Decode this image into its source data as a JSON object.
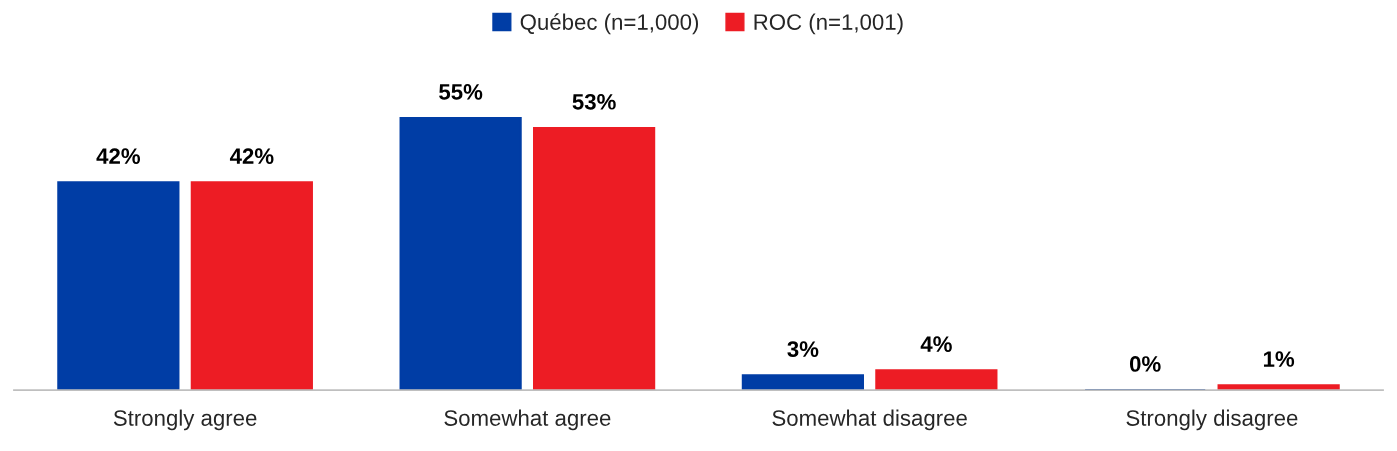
{
  "chart_data": {
    "type": "bar",
    "categories": [
      "Strongly agree",
      "Somewhat agree",
      "Somewhat disagree",
      "Strongly disagree"
    ],
    "series": [
      {
        "name": "Québec (n=1,000)",
        "color": "#003da5",
        "values": [
          42,
          55,
          3,
          0
        ],
        "value_labels": [
          "42%",
          "55%",
          "3%",
          "0%"
        ]
      },
      {
        "name": "ROC (n=1,001)",
        "color": "#ed1c24",
        "values": [
          42,
          53,
          4,
          1
        ],
        "value_labels": [
          "42%",
          "53%",
          "4%",
          "1%"
        ]
      }
    ],
    "legend": "top",
    "grid": false
  }
}
